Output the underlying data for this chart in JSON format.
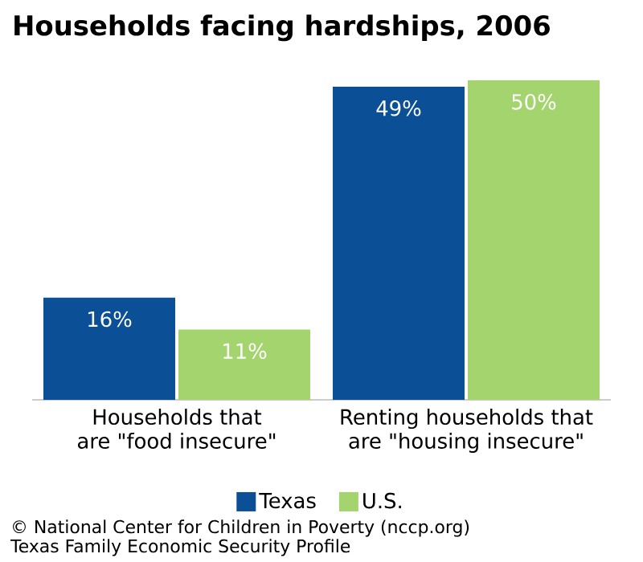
{
  "chart_data": {
    "type": "bar",
    "title": "Households facing hardships, 2006",
    "categories": [
      "Households that\nare \"food insecure\"",
      "Renting households that\nare \"housing insecure\""
    ],
    "series": [
      {
        "name": "Texas",
        "color": "#0b5096",
        "values": [
          16,
          49
        ],
        "value_labels": [
          "16%",
          "49%"
        ]
      },
      {
        "name": "U.S.",
        "color": "#a3d46e",
        "values": [
          11,
          50
        ],
        "value_labels": [
          "11%",
          "50%"
        ]
      }
    ],
    "legend": "bottom",
    "annotations": [
      "© National Center for Children in Poverty (nccp.org)",
      "Texas Family Economic Security Profile"
    ]
  }
}
